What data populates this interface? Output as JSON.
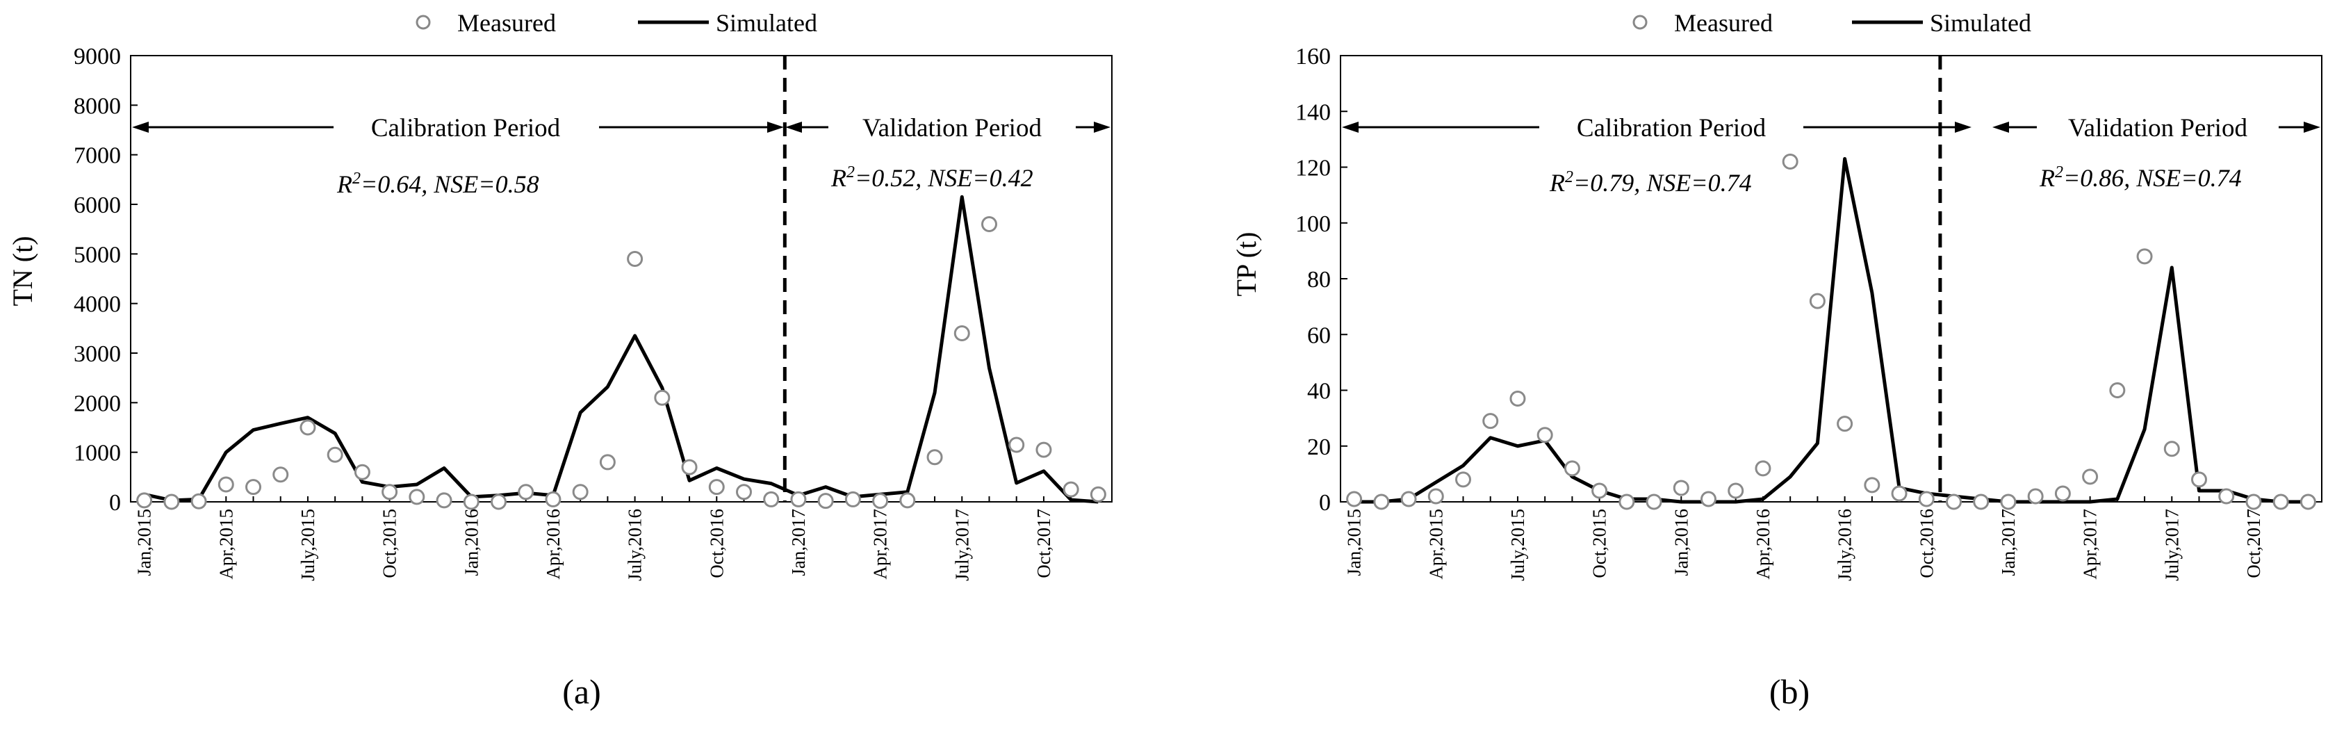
{
  "legend": {
    "measured": "Measured",
    "simulated": "Simulated"
  },
  "chart_data": [
    {
      "panel_label": "(a)",
      "type": "line",
      "ylabel": "TN (t)",
      "ylim": [
        0,
        9000
      ],
      "yticks": [
        0,
        1000,
        2000,
        3000,
        4000,
        5000,
        6000,
        7000,
        8000,
        9000
      ],
      "x": [
        1,
        2,
        3,
        4,
        5,
        6,
        7,
        8,
        9,
        10,
        11,
        12,
        13,
        14,
        15,
        16,
        17,
        18,
        19,
        20,
        21,
        22,
        23,
        24,
        25,
        26,
        27,
        28,
        29,
        30,
        31,
        32,
        33,
        34,
        35,
        36
      ],
      "xlim": [
        0.5,
        36.5
      ],
      "xtick_labels": [
        "Jan,2015",
        "Apr,2015",
        "July,2015",
        "Oct,2015",
        "Jan,2016",
        "Apr,2016",
        "July,2016",
        "Oct,2016",
        "Jan,2017",
        "Apr,2017",
        "July,2017",
        "Oct,2017"
      ],
      "xtick_positions": [
        1,
        4,
        7,
        10,
        13,
        16,
        19,
        22,
        25,
        28,
        31,
        34
      ],
      "series": [
        {
          "name": "Measured",
          "style": "open-circle",
          "values": [
            30,
            0,
            10,
            350,
            300,
            550,
            1500,
            950,
            600,
            200,
            100,
            30,
            0,
            0,
            200,
            50,
            200,
            800,
            4900,
            2100,
            700,
            300,
            200,
            50,
            50,
            20,
            50,
            20,
            30,
            900,
            3400,
            5600,
            1150,
            1050,
            250,
            150
          ]
        },
        {
          "name": "Simulated",
          "style": "solid-line",
          "values": [
            150,
            30,
            50,
            1000,
            1450,
            1580,
            1700,
            1380,
            400,
            300,
            350,
            680,
            100,
            130,
            180,
            130,
            1800,
            2320,
            3350,
            2300,
            430,
            680,
            460,
            370,
            130,
            300,
            100,
            150,
            200,
            2200,
            6150,
            2700,
            380,
            620,
            40,
            0
          ]
        }
      ],
      "divider_x": 24.5,
      "annotations": {
        "calibration": "Calibration Period",
        "validation": "Validation Period",
        "calibration_r2": "0.64",
        "calibration_nse": "0.58",
        "validation_r2": "0.52",
        "validation_nse": "0.42"
      }
    },
    {
      "panel_label": "(b)",
      "type": "line",
      "ylabel": "TP (t)",
      "ylim": [
        0,
        160
      ],
      "yticks": [
        0,
        20,
        40,
        60,
        80,
        100,
        120,
        140,
        160
      ],
      "x": [
        1,
        2,
        3,
        4,
        5,
        6,
        7,
        8,
        9,
        10,
        11,
        12,
        13,
        14,
        15,
        16,
        17,
        18,
        19,
        20,
        21,
        22,
        23,
        24,
        25,
        26,
        27,
        28,
        29,
        30,
        31,
        32,
        33,
        34,
        35,
        36
      ],
      "xlim": [
        0.5,
        36.5
      ],
      "xtick_labels": [
        "Jan,2015",
        "Apr,2015",
        "July,2015",
        "Oct,2015",
        "Jan,2016",
        "Apr,2016",
        "July,2016",
        "Oct,2016",
        "Jan,2017",
        "Apr,2017",
        "July,2017",
        "Oct,2017"
      ],
      "xtick_positions": [
        1,
        4,
        7,
        10,
        13,
        16,
        19,
        22,
        25,
        28,
        31,
        34
      ],
      "series": [
        {
          "name": "Measured",
          "style": "open-circle",
          "values": [
            1,
            0,
            1,
            2,
            8,
            29,
            37,
            24,
            12,
            4,
            0,
            0,
            5,
            1,
            4,
            12,
            122,
            72,
            28,
            6,
            3,
            1,
            0,
            0,
            0,
            2,
            3,
            9,
            40,
            88,
            19,
            8,
            2,
            0,
            0,
            0
          ]
        },
        {
          "name": "Simulated",
          "style": "solid-line",
          "values": [
            0,
            0,
            1,
            7,
            13,
            23,
            20,
            22,
            9,
            4,
            1,
            1,
            0,
            0,
            0,
            1,
            9,
            21,
            123,
            75,
            5,
            3,
            2,
            1,
            0,
            0,
            0,
            0,
            1,
            26,
            84,
            4,
            4,
            1,
            0,
            0
          ]
        }
      ],
      "divider_x": 22.5,
      "annotations": {
        "calibration": "Calibration Period",
        "validation": "Validation Period",
        "calibration_r2": "0.79",
        "calibration_nse": "0.74",
        "validation_r2": "0.86",
        "validation_nse": "0.74"
      }
    }
  ]
}
